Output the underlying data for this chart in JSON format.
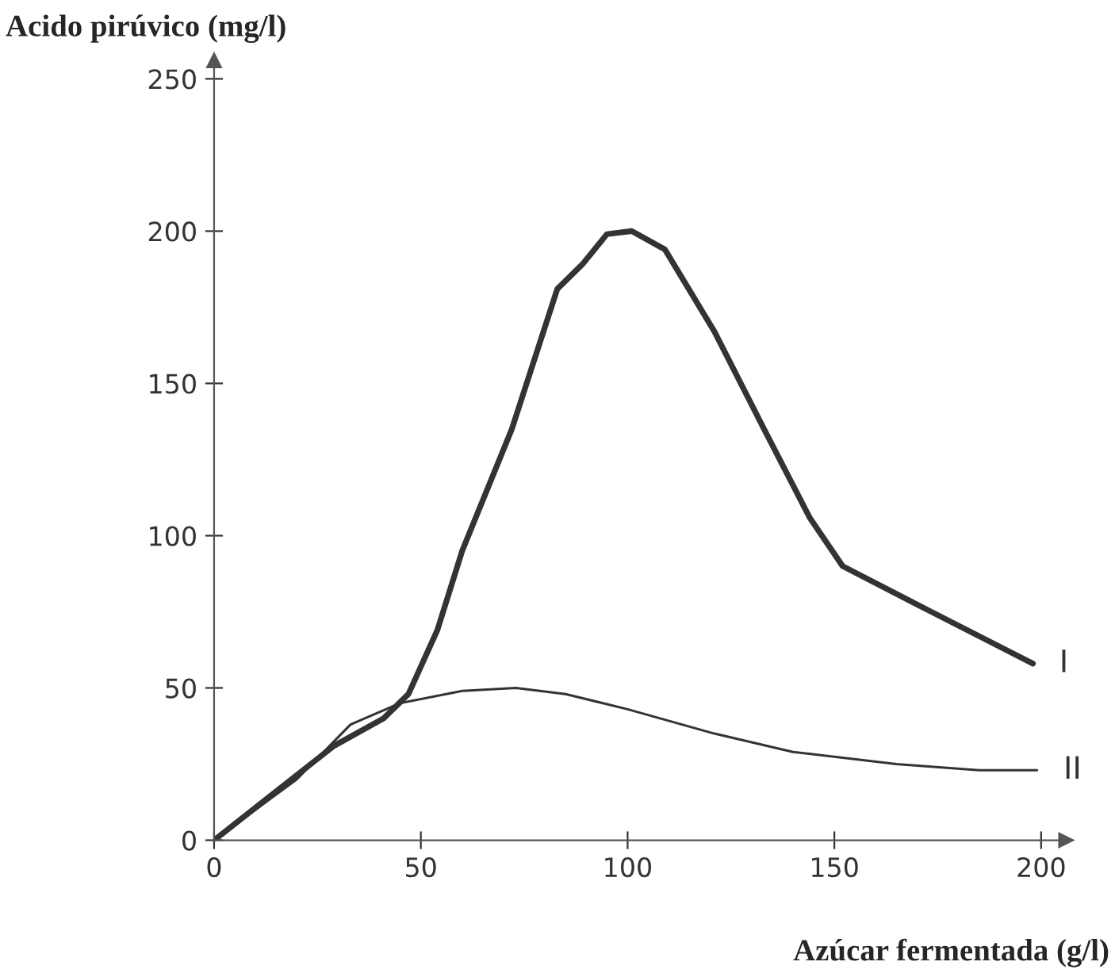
{
  "chart_data": {
    "type": "line",
    "xlabel": "Azúcar fermentada (g/l)",
    "ylabel": "Acido pirúvico (mg/l)",
    "xlim": [
      0,
      206
    ],
    "ylim": [
      0,
      256
    ],
    "xticks": [
      0,
      50,
      100,
      150,
      200
    ],
    "yticks": [
      0,
      50,
      100,
      150,
      200,
      250
    ],
    "grid": false,
    "marker": "none",
    "line_style": "solid",
    "series": [
      {
        "color": "#333333",
        "x": [
          0,
          29,
          41,
          47,
          54,
          60,
          72,
          83,
          89,
          95,
          101,
          109,
          121,
          133,
          144,
          152,
          172,
          198
        ],
        "values": [
          0,
          31,
          40,
          48,
          69,
          95,
          135,
          181,
          189,
          199,
          200,
          194,
          167,
          135,
          106,
          90,
          76,
          58
        ]
      },
      {
        "color": "#333333",
        "x": [
          0,
          20,
          33,
          45,
          60,
          73,
          85,
          100,
          121,
          140,
          165,
          185,
          199
        ],
        "values": [
          0,
          20,
          38,
          45,
          49,
          50,
          48,
          43,
          35,
          29,
          25,
          23,
          23
        ]
      }
    ],
    "annotations": [
      {
        "text": "I",
        "x": 198,
        "y": 58
      },
      {
        "text": "II",
        "x": 199,
        "y": 23
      }
    ]
  }
}
